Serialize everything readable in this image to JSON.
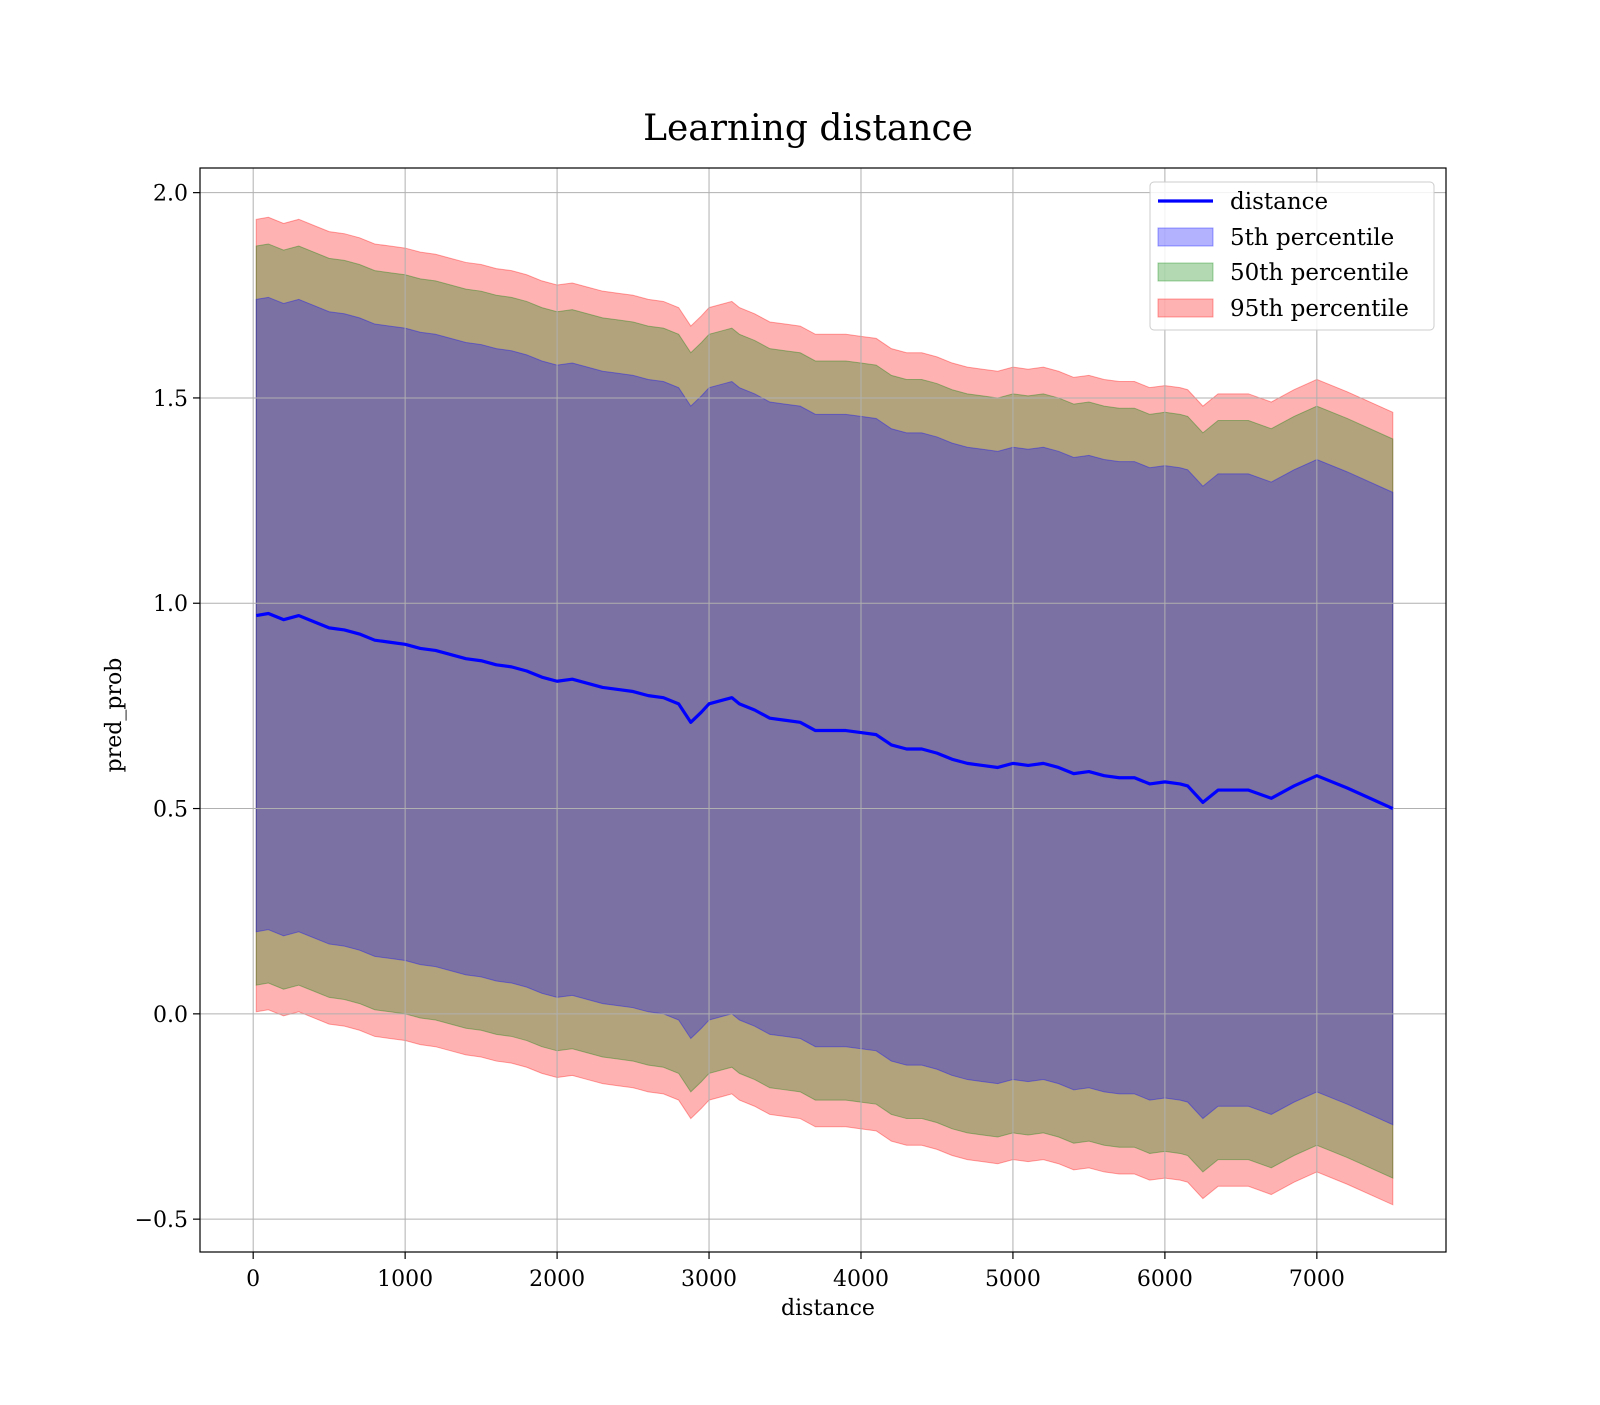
{
  "chart_data": {
    "type": "line",
    "title": "Learning distance",
    "xlabel": "distance",
    "ylabel": "pred_prob",
    "xlim": [
      -350,
      7850
    ],
    "ylim": [
      -0.58,
      2.06
    ],
    "xticks": [
      0,
      1000,
      2000,
      3000,
      4000,
      5000,
      6000,
      7000
    ],
    "xtick_labels": [
      "0",
      "1000",
      "2000",
      "3000",
      "4000",
      "5000",
      "6000",
      "7000"
    ],
    "yticks": [
      -0.5,
      0.0,
      0.5,
      1.0,
      1.5,
      2.0
    ],
    "ytick_labels": [
      "−0.5",
      "0.0",
      "0.5",
      "1.0",
      "1.5",
      "2.0"
    ],
    "grid": true,
    "legend_position": "top-right",
    "legend": [
      "distance",
      "5th percentile",
      "50th percentile",
      "95th percentile"
    ],
    "colors": {
      "line": "#0000ff",
      "band_5": "#0000ff",
      "band_50": "#008000",
      "band_95": "#ff0000",
      "grid": "#b0b0b0"
    },
    "x": [
      20,
      100,
      200,
      300,
      400,
      500,
      600,
      700,
      800,
      900,
      1000,
      1100,
      1200,
      1300,
      1400,
      1500,
      1600,
      1700,
      1800,
      1900,
      2000,
      2100,
      2200,
      2300,
      2400,
      2500,
      2600,
      2700,
      2800,
      2880,
      2950,
      3000,
      3100,
      3150,
      3200,
      3300,
      3400,
      3500,
      3600,
      3700,
      3800,
      3900,
      4000,
      4100,
      4200,
      4300,
      4400,
      4500,
      4600,
      4700,
      4800,
      4900,
      5000,
      5100,
      5200,
      5300,
      5400,
      5500,
      5600,
      5700,
      5800,
      5900,
      6000,
      6100,
      6150,
      6250,
      6350,
      6450,
      6550,
      6700,
      6850,
      7000,
      7200,
      7500
    ],
    "series": [
      {
        "name": "distance",
        "values": [
          0.97,
          0.975,
          0.96,
          0.97,
          0.955,
          0.94,
          0.935,
          0.925,
          0.91,
          0.905,
          0.9,
          0.89,
          0.885,
          0.875,
          0.865,
          0.86,
          0.85,
          0.845,
          0.835,
          0.82,
          0.81,
          0.815,
          0.805,
          0.795,
          0.79,
          0.785,
          0.775,
          0.77,
          0.755,
          0.71,
          0.735,
          0.755,
          0.765,
          0.77,
          0.755,
          0.74,
          0.72,
          0.715,
          0.71,
          0.69,
          0.69,
          0.69,
          0.685,
          0.68,
          0.655,
          0.645,
          0.645,
          0.635,
          0.62,
          0.61,
          0.605,
          0.6,
          0.61,
          0.605,
          0.61,
          0.6,
          0.585,
          0.59,
          0.58,
          0.575,
          0.575,
          0.56,
          0.565,
          0.56,
          0.555,
          0.515,
          0.545,
          0.545,
          0.545,
          0.525,
          0.555,
          0.58,
          0.55,
          0.5
        ]
      }
    ],
    "bands": [
      {
        "name": "5th percentile",
        "offset": 0.77
      },
      {
        "name": "50th percentile",
        "offset": 0.9
      },
      {
        "name": "95th percentile",
        "offset": 0.965
      }
    ]
  }
}
